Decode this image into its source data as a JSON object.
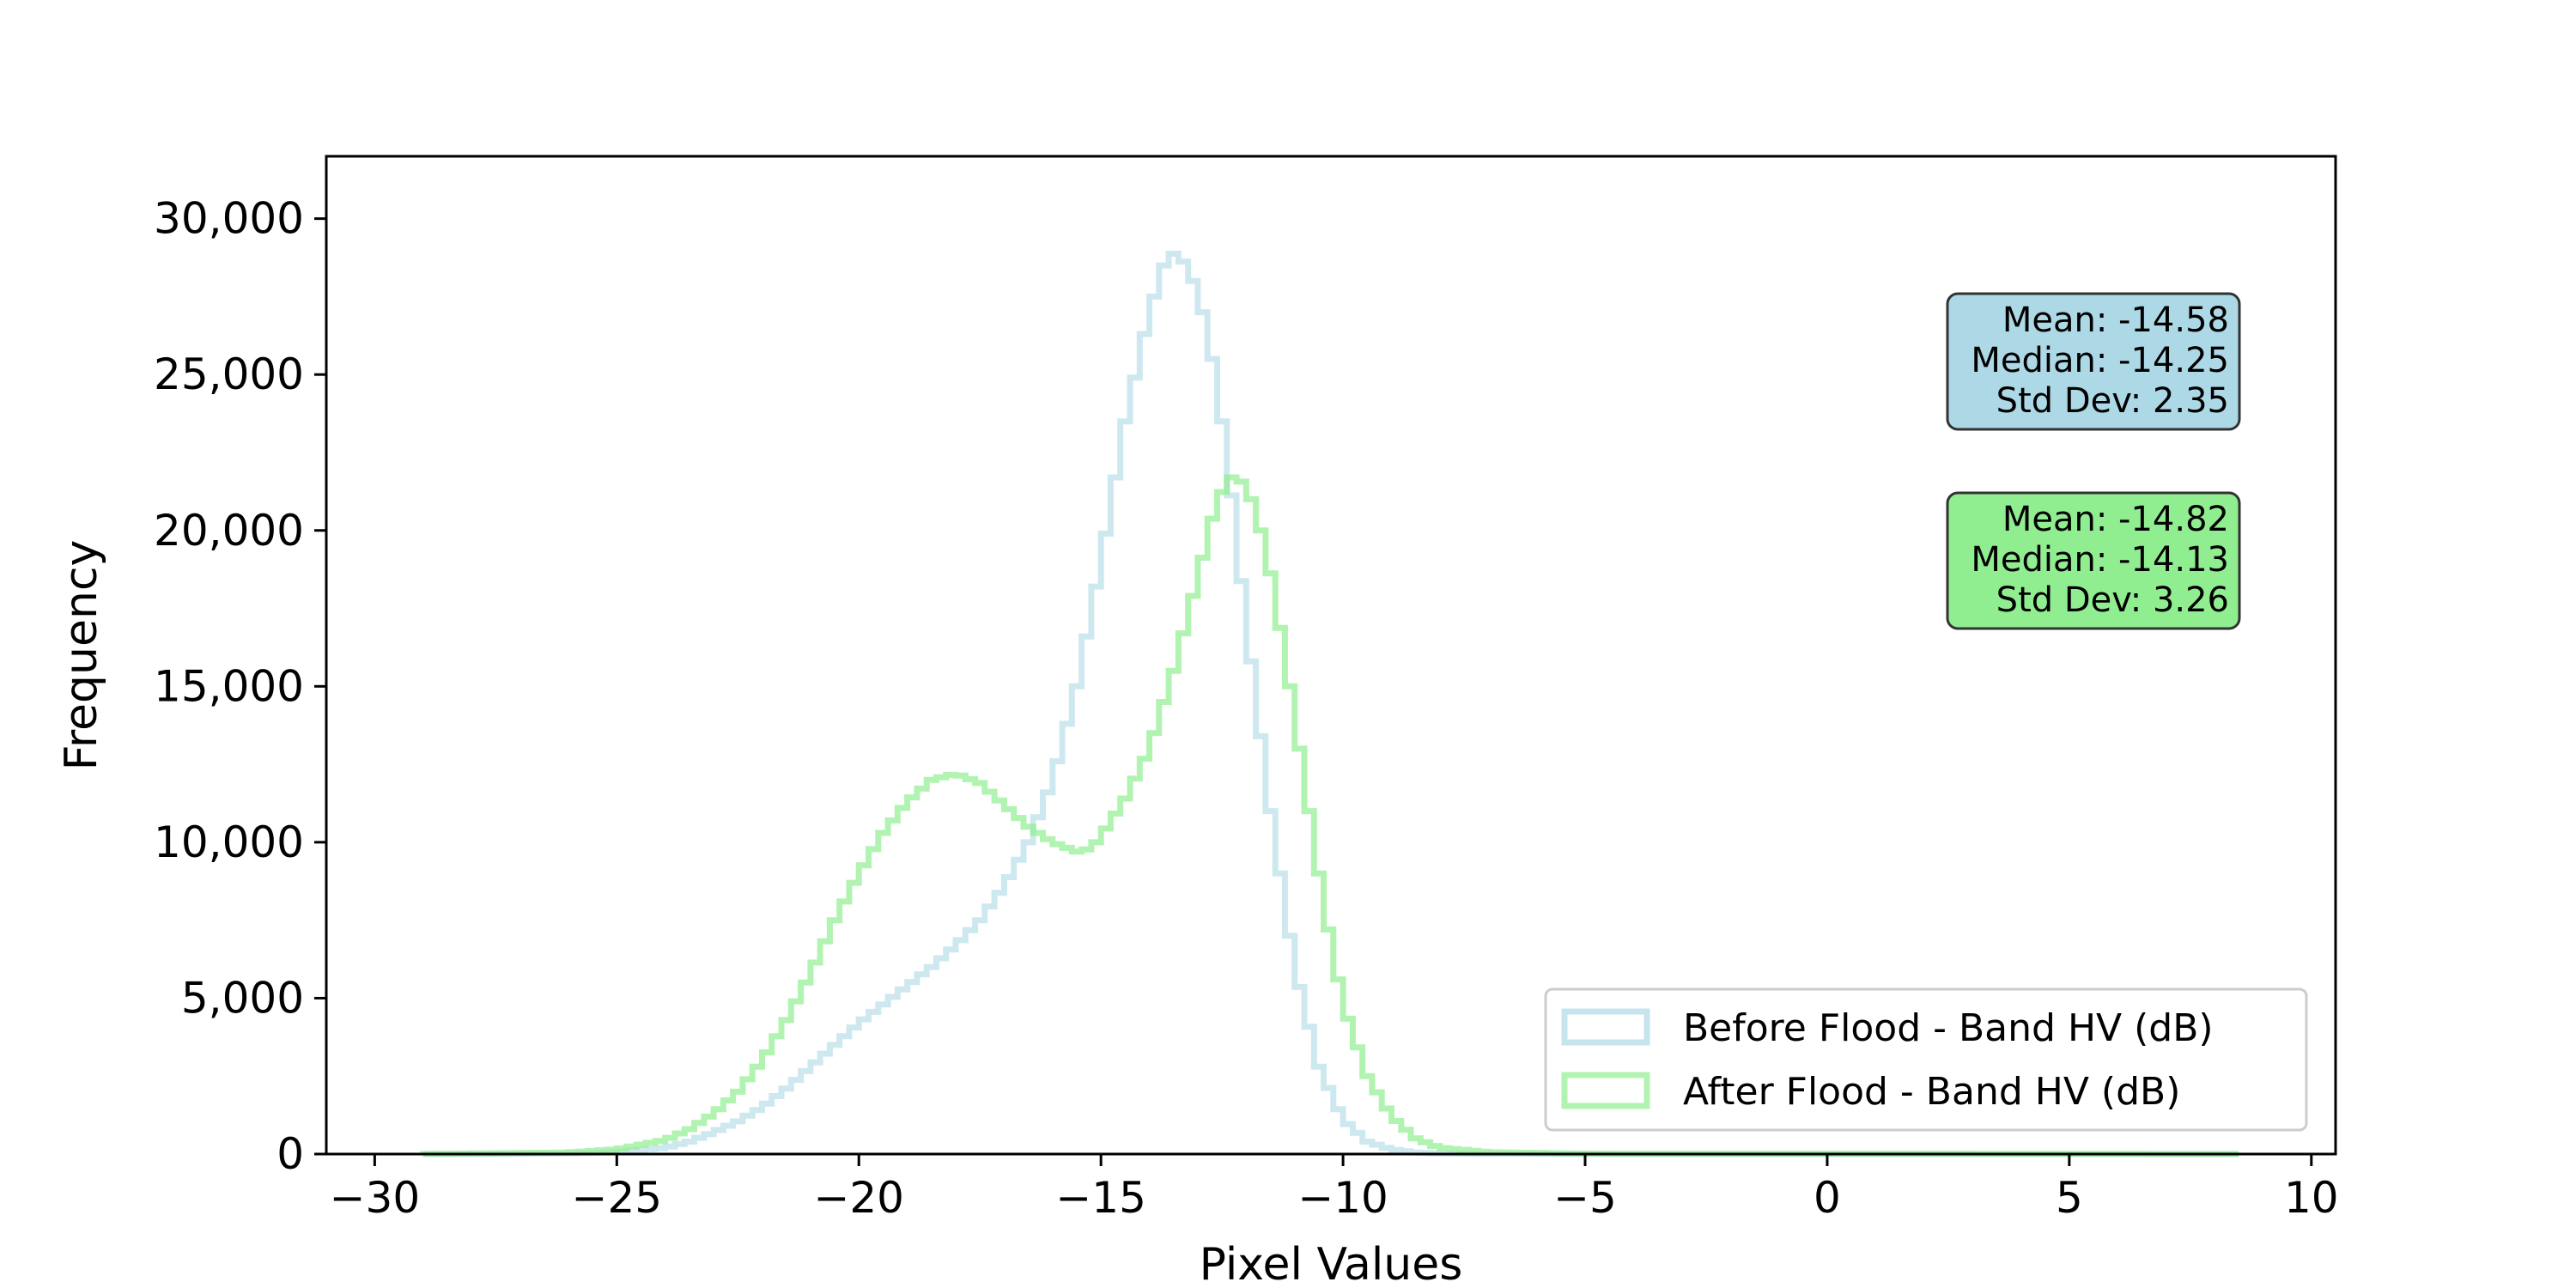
{
  "chart_data": {
    "type": "histogram",
    "xlabel": "Pixel Values",
    "ylabel": "Frequency",
    "xlim": [
      -31,
      10.5
    ],
    "ylim": [
      0,
      32000
    ],
    "x_ticks": [
      -30,
      -25,
      -20,
      -15,
      -10,
      -5,
      0,
      5,
      10
    ],
    "x_tick_labels": [
      "−30",
      "−25",
      "−20",
      "−15",
      "−10",
      "−5",
      "0",
      "5",
      "10"
    ],
    "y_ticks": [
      0,
      5000,
      10000,
      15000,
      20000,
      25000,
      30000
    ],
    "y_tick_labels": [
      "0",
      "5,000",
      "10,000",
      "15,000",
      "20,000",
      "25,000",
      "30,000"
    ],
    "grid": false,
    "legend_position": "lower-right",
    "series": [
      {
        "name": "Before Flood - Band HV (dB)",
        "color": "#add8e6",
        "style": "step",
        "points": [
          [
            -29,
            0
          ],
          [
            -26,
            20
          ],
          [
            -25,
            60
          ],
          [
            -24,
            200
          ],
          [
            -23.5,
            400
          ],
          [
            -23,
            700
          ],
          [
            -22.5,
            1050
          ],
          [
            -22,
            1500
          ],
          [
            -21.5,
            2100
          ],
          [
            -21,
            2800
          ],
          [
            -20.5,
            3500
          ],
          [
            -20,
            4200
          ],
          [
            -19.5,
            4800
          ],
          [
            -19,
            5400
          ],
          [
            -18.5,
            6000
          ],
          [
            -18,
            6700
          ],
          [
            -17.5,
            7500
          ],
          [
            -17,
            8600
          ],
          [
            -16.5,
            10000
          ],
          [
            -16,
            12000
          ],
          [
            -15.5,
            15000
          ],
          [
            -15,
            19000
          ],
          [
            -14.5,
            23500
          ],
          [
            -14,
            27000
          ],
          [
            -13.6,
            29000
          ],
          [
            -13.2,
            28500
          ],
          [
            -12.8,
            26500
          ],
          [
            -12.4,
            22500
          ],
          [
            -12,
            17000
          ],
          [
            -11.5,
            11000
          ],
          [
            -11,
            6000
          ],
          [
            -10.5,
            2800
          ],
          [
            -10,
            1100
          ],
          [
            -9.5,
            400
          ],
          [
            -9,
            150
          ],
          [
            -8.5,
            50
          ],
          [
            -8,
            20
          ],
          [
            -7,
            5
          ],
          [
            8.5,
            0
          ]
        ]
      },
      {
        "name": "After Flood - Band HV (dB)",
        "color": "#90ee90",
        "style": "step",
        "points": [
          [
            -29,
            0
          ],
          [
            -26,
            50
          ],
          [
            -25,
            150
          ],
          [
            -24,
            450
          ],
          [
            -23.5,
            800
          ],
          [
            -23,
            1300
          ],
          [
            -22.5,
            2000
          ],
          [
            -22,
            3000
          ],
          [
            -21.5,
            4300
          ],
          [
            -21,
            5800
          ],
          [
            -20.5,
            7500
          ],
          [
            -20,
            9000
          ],
          [
            -19.5,
            10300
          ],
          [
            -19,
            11300
          ],
          [
            -18.5,
            12000
          ],
          [
            -18,
            12200
          ],
          [
            -17.5,
            11900
          ],
          [
            -17,
            11200
          ],
          [
            -16.5,
            10500
          ],
          [
            -16,
            10000
          ],
          [
            -15.5,
            9700
          ],
          [
            -15.2,
            9800
          ],
          [
            -15,
            10200
          ],
          [
            -14.5,
            11400
          ],
          [
            -14,
            13000
          ],
          [
            -13.5,
            15500
          ],
          [
            -13,
            18500
          ],
          [
            -12.6,
            21000
          ],
          [
            -12.3,
            21700
          ],
          [
            -12,
            21500
          ],
          [
            -11.6,
            19500
          ],
          [
            -11.2,
            16000
          ],
          [
            -10.8,
            12000
          ],
          [
            -10.4,
            8000
          ],
          [
            -10,
            4800
          ],
          [
            -9.5,
            2500
          ],
          [
            -9,
            1200
          ],
          [
            -8.5,
            500
          ],
          [
            -8,
            200
          ],
          [
            -7,
            60
          ],
          [
            -5,
            10
          ],
          [
            8.5,
            0
          ]
        ]
      }
    ],
    "annotations": [
      {
        "series": "Before Flood - Band HV (dB)",
        "color": "#add8e6",
        "lines": [
          "Mean: -14.58",
          "Median: -14.25",
          "Std Dev: 2.35"
        ]
      },
      {
        "series": "After Flood - Band HV (dB)",
        "color": "#90ee90",
        "lines": [
          "Mean: -14.82",
          "Median: -14.13",
          "Std Dev: 3.26"
        ]
      }
    ]
  }
}
